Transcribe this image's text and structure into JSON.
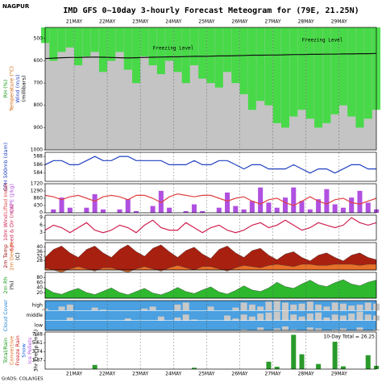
{
  "header": {
    "station": "NAGPUR",
    "credit": "GrADS: COLA/IGES"
  },
  "chart_data": {
    "type": "meteogram",
    "title": "IMD GFS 0~10day 3-hourly Forecast Meteogram for (79E, 21.25N)",
    "x": [
      0,
      6,
      12,
      18,
      24,
      30,
      36,
      42,
      48,
      54,
      60,
      66,
      72,
      78,
      84,
      90,
      96,
      102,
      108,
      114,
      120,
      126,
      132,
      138,
      144,
      150,
      156,
      162,
      168,
      174,
      180,
      186,
      192,
      198,
      204,
      210,
      216,
      222,
      228,
      234,
      240
    ],
    "xlim": [
      0,
      240
    ],
    "xticks": [
      {
        "value": 21,
        "label": "21MAY"
      },
      {
        "value": 45,
        "label": "22MAY"
      },
      {
        "value": 69,
        "label": "23MAY"
      },
      {
        "value": 93,
        "label": "24MAY"
      },
      {
        "value": 117,
        "label": "25MAY"
      },
      {
        "value": 141,
        "label": "26MAY"
      },
      {
        "value": 165,
        "label": "27MAY"
      },
      {
        "value": 189,
        "label": "28MAY"
      },
      {
        "value": 213,
        "label": "29MAY"
      }
    ],
    "panels": [
      {
        "type": "pressure",
        "background": "#c4c4c4",
        "ylim": [
          1000,
          450
        ],
        "yticks": [
          500,
          600,
          700,
          800,
          900,
          1000
        ],
        "labels": [
          {
            "text": "RH (%)",
            "color": "#1a9a1a"
          },
          {
            "text": "Temperature (°C)",
            "color": "#d06000"
          },
          {
            "text": "Wind (m/s)",
            "color": "#2040c0"
          },
          {
            "text": "(millibars)",
            "color": "#000000"
          }
        ],
        "annotations": [
          "Freezing Level",
          "Freezing Level"
        ],
        "series": [
          {
            "type": "column",
            "color": "#33dd33",
            "values": [
              520,
              600,
              560,
              540,
              620,
              580,
              560,
              650,
              600,
              560,
              640,
              700,
              580,
              620,
              660,
              600,
              650,
              700,
              620,
              680,
              700,
              720,
              650,
              700,
              750,
              820,
              780,
              800,
              880,
              900,
              850,
              820,
              860,
              900,
              880,
              840,
              800,
              850,
              900,
              860,
              820
            ]
          },
          {
            "type": "line",
            "color": "#111111",
            "values": [
              590,
              588,
              586,
              585,
              585,
              584,
              583,
              584,
              585,
              586,
              587,
              586,
              585,
              584,
              583,
              582,
              582,
              581,
              580,
              580,
              579,
              578,
              578,
              577,
              576,
              575,
              575,
              574,
              574,
              573,
              572,
              572,
              571,
              571,
              570,
              570,
              569,
              569,
              568,
              568,
              567
            ]
          }
        ]
      },
      {
        "type": "line",
        "background": "#ffffff",
        "ylim": [
          582,
          589
        ],
        "yticks": [
          584,
          586,
          588
        ],
        "labels": [
          {
            "text": "GPH 500mb (dam)",
            "color": "#2040c0"
          }
        ],
        "series": [
          {
            "type": "line",
            "color": "#2040c0",
            "values": [
              586,
              587,
              587,
              586,
              586,
              587,
              588,
              587,
              587,
              588,
              588,
              587,
              587,
              587,
              587,
              586,
              586,
              586,
              587,
              586,
              586,
              587,
              587,
              586,
              585,
              586,
              586,
              585,
              585,
              585,
              586,
              585,
              584,
              585,
              585,
              584,
              585,
              586,
              586,
              585,
              585
            ]
          }
        ]
      },
      {
        "type": "bar",
        "background": "#ffffff",
        "ylim": [
          0,
          1720
        ],
        "yticks": [
          0,
          430,
          860,
          1290,
          1720
        ],
        "y2lim": [
          -10,
          10
        ],
        "labels": [
          {
            "text": "Lifted Index",
            "color": "#e04040"
          },
          {
            "text": "CAPE (J/kg)",
            "color": "#b050e0"
          }
        ],
        "series": [
          {
            "type": "bar",
            "color": "#b050e0",
            "values": [
              0,
              200,
              900,
              300,
              0,
              300,
              1100,
              200,
              0,
              200,
              800,
              100,
              0,
              400,
              1300,
              300,
              0,
              100,
              500,
              100,
              0,
              300,
              1200,
              400,
              200,
              700,
              1500,
              600,
              300,
              900,
              1500,
              700,
              200,
              800,
              1400,
              500,
              300,
              900,
              1300,
              600,
              200
            ]
          },
          {
            "type": "line",
            "axis": "y2",
            "color": "#e04040",
            "values": [
              2,
              1,
              -1,
              1,
              2,
              0,
              -2,
              1,
              2,
              1,
              -1,
              2,
              2,
              0,
              -3,
              1,
              3,
              2,
              1,
              2,
              2,
              0,
              -2,
              0,
              1,
              -2,
              -4,
              -1,
              0,
              -3,
              -5,
              -2,
              1,
              -2,
              -4,
              -1,
              0,
              -3,
              -4,
              -2,
              0
            ]
          }
        ]
      },
      {
        "type": "line",
        "background": "#ffffff",
        "ylim": [
          0,
          10
        ],
        "yticks": [
          3,
          6,
          9
        ],
        "labels": [
          {
            "text": "10m Wind",
            "color": "#d02050"
          },
          {
            "text": "Speed & Dir (m/s)",
            "color": "#d02050"
          }
        ],
        "series": [
          {
            "type": "line",
            "color": "#d02050",
            "values": [
              4,
              6,
              5,
              3,
              5,
              7,
              4,
              3,
              4,
              6,
              5,
              3,
              6,
              8,
              5,
              4,
              4,
              7,
              5,
              3,
              5,
              6,
              4,
              3,
              4,
              6,
              7,
              5,
              6,
              8,
              6,
              4,
              5,
              7,
              6,
              5,
              6,
              9,
              7,
              6,
              7
            ]
          }
        ]
      },
      {
        "type": "area",
        "background": "#ffffff",
        "ylim": [
          20,
          44
        ],
        "yticks": [
          28,
          32,
          36,
          40
        ],
        "labels": [
          {
            "text": "2m Temp",
            "color": "#a01010"
          },
          {
            "text": "2m Dew Pt",
            "color": "#e07020"
          },
          {
            "text": "(C)",
            "color": "#000000"
          }
        ],
        "series": [
          {
            "type": "area",
            "color": "#a82010",
            "values": [
              31,
              38,
              41,
              35,
              31,
              38,
              41,
              35,
              31,
              38,
              42,
              36,
              32,
              39,
              42,
              36,
              31,
              37,
              40,
              34,
              30,
              38,
              41,
              35,
              31,
              37,
              39,
              33,
              29,
              34,
              36,
              31,
              28,
              33,
              35,
              31,
              28,
              33,
              35,
              31,
              29
            ]
          },
          {
            "type": "area",
            "color": "#e8702a",
            "values": [
              22,
              20,
              18,
              21,
              23,
              21,
              19,
              22,
              22,
              20,
              18,
              21,
              23,
              21,
              19,
              22,
              24,
              22,
              20,
              23,
              23,
              21,
              19,
              22,
              24,
              23,
              22,
              24,
              25,
              24,
              23,
              25,
              25,
              24,
              24,
              25,
              25,
              25,
              24,
              25,
              25
            ]
          }
        ]
      },
      {
        "type": "area",
        "background": "#ffffff",
        "ylim": [
          0,
          100
        ],
        "yticks": [
          20,
          40,
          60,
          80
        ],
        "labels": [
          {
            "text": "2m Rh",
            "color": "#1a9a1a"
          },
          {
            "text": "(%)",
            "color": "#000000"
          }
        ],
        "series": [
          {
            "type": "area",
            "color": "#2eb82e",
            "values": [
              40,
              22,
              15,
              28,
              38,
              22,
              14,
              27,
              40,
              22,
              13,
              26,
              38,
              20,
              13,
              25,
              42,
              26,
              18,
              32,
              44,
              24,
              16,
              30,
              48,
              32,
              26,
              40,
              62,
              45,
              38,
              55,
              70,
              52,
              45,
              60,
              72,
              55,
              48,
              62,
              70
            ]
          }
        ]
      },
      {
        "type": "cloud",
        "background": "#4aa0e0",
        "ylim": [
          0,
          100
        ],
        "labels": [
          {
            "text": "Cloud Cover",
            "color": "#2080d0"
          }
        ],
        "series": [
          {
            "type": "band",
            "name": "high",
            "color": "#c8c8c8",
            "values": [
              20,
              0,
              40,
              60,
              0,
              0,
              30,
              10,
              0,
              0,
              0,
              0,
              20,
              40,
              0,
              0,
              60,
              80,
              0,
              0,
              40,
              0,
              0,
              30,
              80,
              60,
              40,
              90,
              100,
              80,
              60,
              70,
              90,
              60,
              40,
              80,
              70,
              50,
              60,
              80,
              70
            ]
          },
          {
            "type": "band",
            "name": "middle",
            "color": "#c8c8c8",
            "values": [
              0,
              0,
              0,
              30,
              0,
              0,
              0,
              0,
              0,
              0,
              20,
              0,
              0,
              0,
              40,
              0,
              30,
              60,
              10,
              0,
              0,
              0,
              50,
              20,
              60,
              40,
              70,
              80,
              90,
              100,
              60,
              40,
              70,
              80,
              30,
              60,
              50,
              70,
              90,
              60,
              50
            ]
          },
          {
            "type": "band",
            "name": "low",
            "color": "#c8c8c8",
            "values": [
              0,
              0,
              0,
              0,
              0,
              0,
              0,
              0,
              0,
              0,
              0,
              0,
              0,
              0,
              0,
              0,
              0,
              0,
              0,
              0,
              0,
              0,
              0,
              0,
              10,
              0,
              30,
              0,
              20,
              40,
              10,
              0,
              30,
              20,
              0,
              10,
              20,
              0,
              30,
              0,
              10
            ]
          }
        ]
      },
      {
        "type": "bar",
        "background": "#ffffff",
        "ylim": [
          0,
          8
        ],
        "yticks": [
          1.87,
          3.74,
          5.61,
          7.48
        ],
        "annotation": "10-Day Total = 26.25",
        "labels": [
          {
            "text": "Total/Rain",
            "color": "#1a9a1a"
          },
          {
            "text": "Convective",
            "color": "#e07020"
          },
          {
            "text": "Freeze Rain",
            "color": "#d02020"
          },
          {
            "text": "Snow",
            "color": "#2060e0"
          },
          {
            "text": "Ice Pellets",
            "color": "#b050e0"
          },
          {
            "text": "3hr Precip (mm)",
            "color": "#000000"
          }
        ],
        "series": [
          {
            "type": "bar",
            "color": "#2a9a2a",
            "values": [
              0,
              0,
              0,
              0,
              0,
              0,
              0.9,
              0,
              0,
              0,
              0,
              0,
              0,
              0,
              0,
              0,
              0,
              0,
              0.3,
              0,
              0,
              0,
              0,
              0,
              0,
              0,
              0,
              1.6,
              0.5,
              0,
              7.4,
              3.2,
              0,
              1.1,
              0,
              5.9,
              0.6,
              0,
              0,
              3.0,
              0.7
            ]
          }
        ]
      }
    ]
  }
}
